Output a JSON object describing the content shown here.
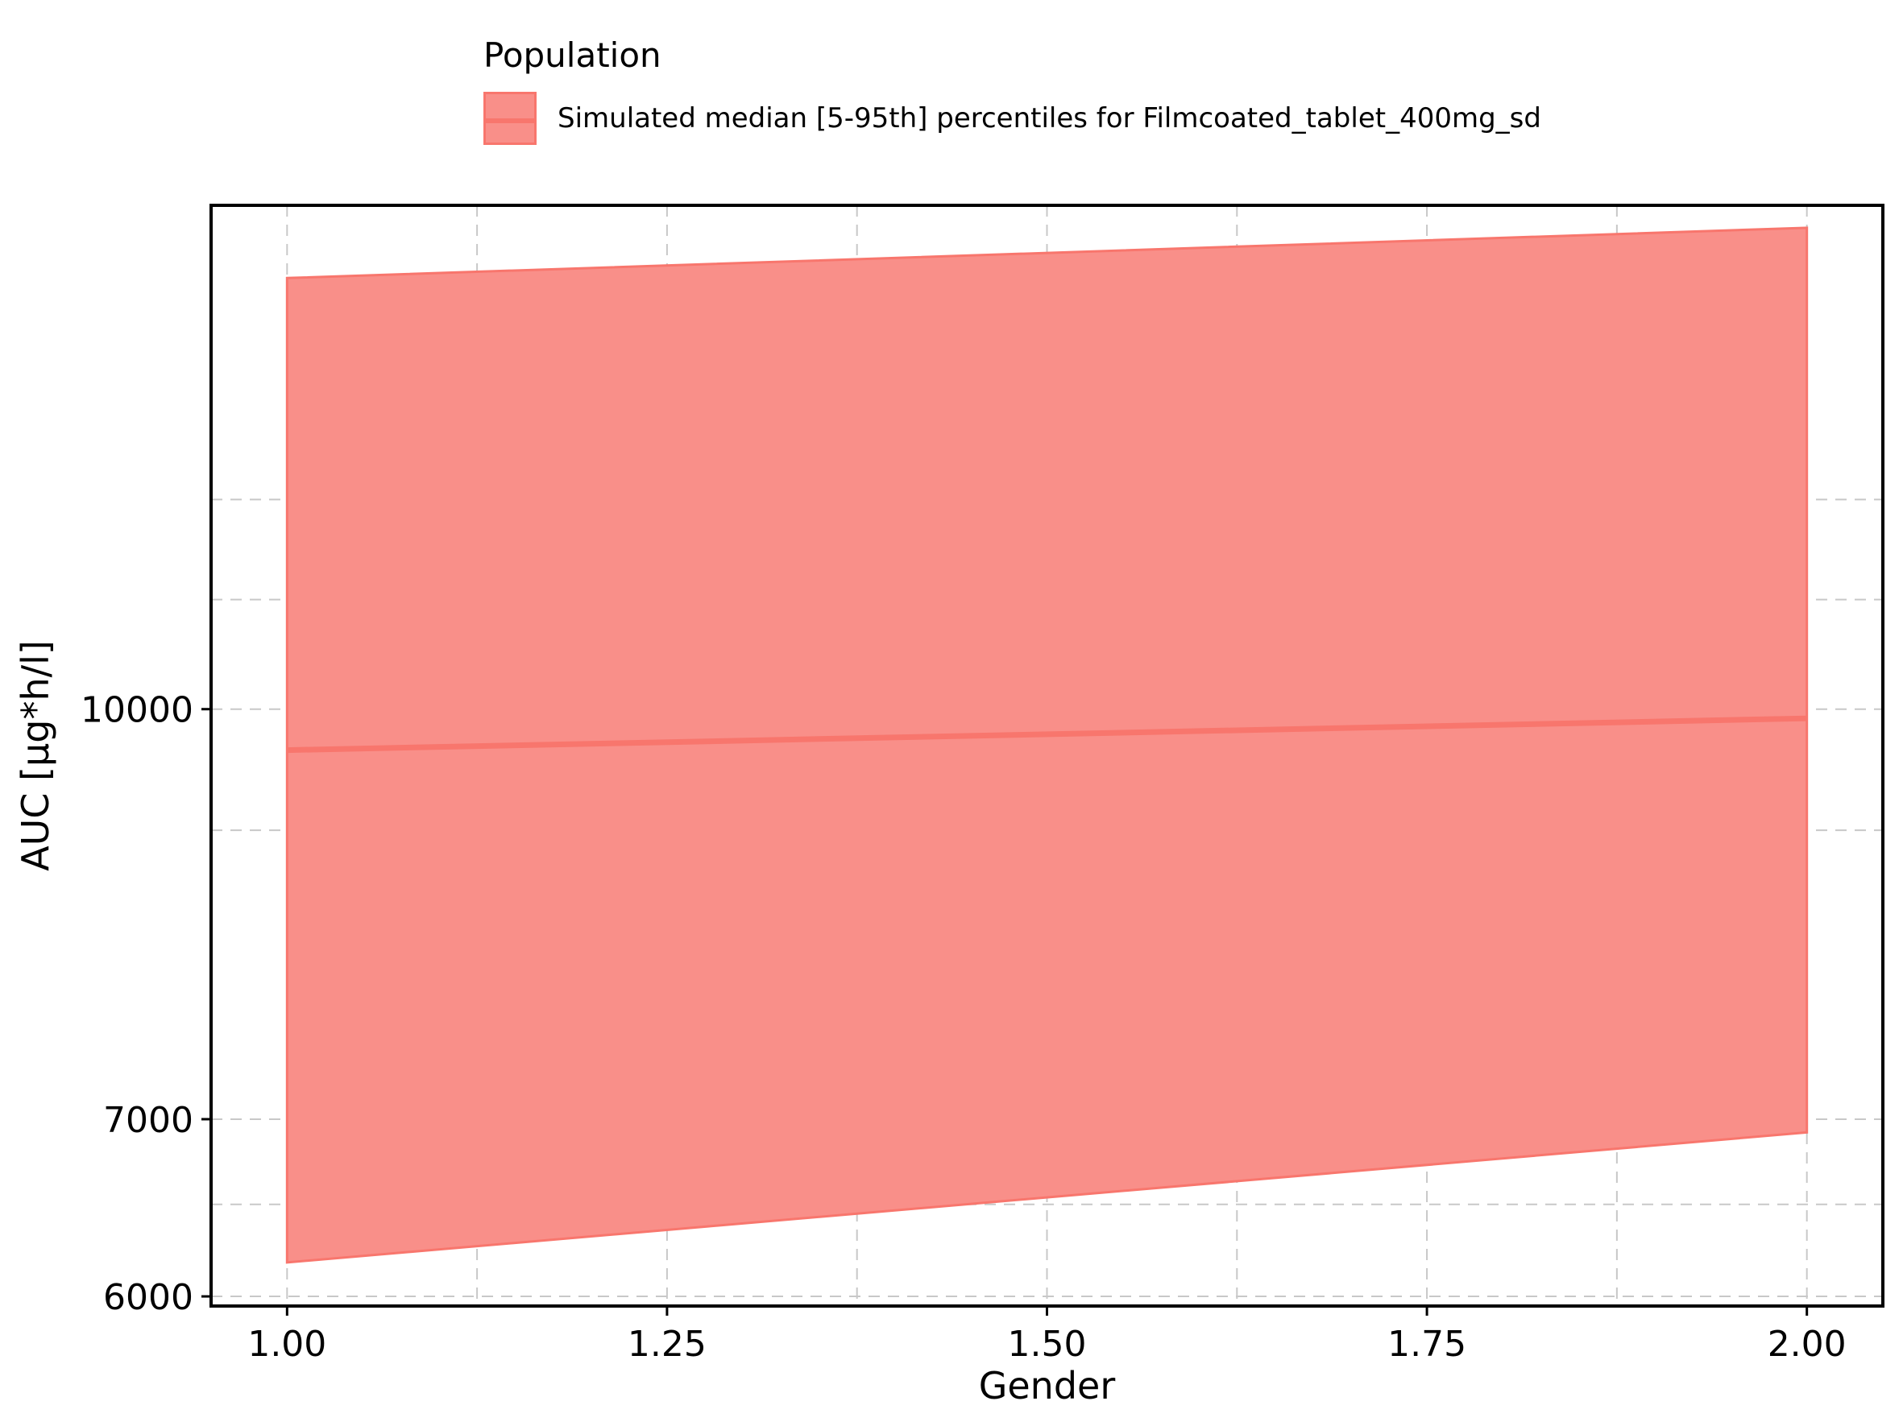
{
  "legend": {
    "title": "Population",
    "entry_label": "Simulated median [5-95th] percentiles for Filmcoated_tablet_400mg_sd",
    "fill_color": "#f98f89",
    "line_color": "#f8766d"
  },
  "chart_data": {
    "type": "area",
    "xlabel": "Gender",
    "ylabel": "AUC [µg*h/l]",
    "y_scale": "log",
    "xlim": [
      0.95,
      2.05
    ],
    "ylim": [
      5950,
      15500
    ],
    "x_ticks": [
      1.0,
      1.25,
      1.5,
      1.75,
      2.0
    ],
    "x_tick_labels": [
      "1.00",
      "1.25",
      "1.50",
      "1.75",
      "2.00"
    ],
    "x_minor_gridlines": [
      1.125,
      1.375,
      1.625,
      1.875
    ],
    "y_ticks": [
      6000,
      7000,
      10000
    ],
    "y_tick_labels": [
      "6000",
      "7000",
      "10000"
    ],
    "y_minor_gridlines": [
      6500,
      9000,
      11000,
      12000
    ],
    "grid": true,
    "legend_position": "top",
    "series": [
      {
        "name": "Simulated median [5-95th] percentiles for Filmcoated_tablet_400mg_sd",
        "x": [
          1.0,
          2.0
        ],
        "median": [
          9650,
          9920
        ],
        "lower": [
          6180,
          6920
        ],
        "upper": [
          14550,
          15200
        ]
      }
    ]
  }
}
